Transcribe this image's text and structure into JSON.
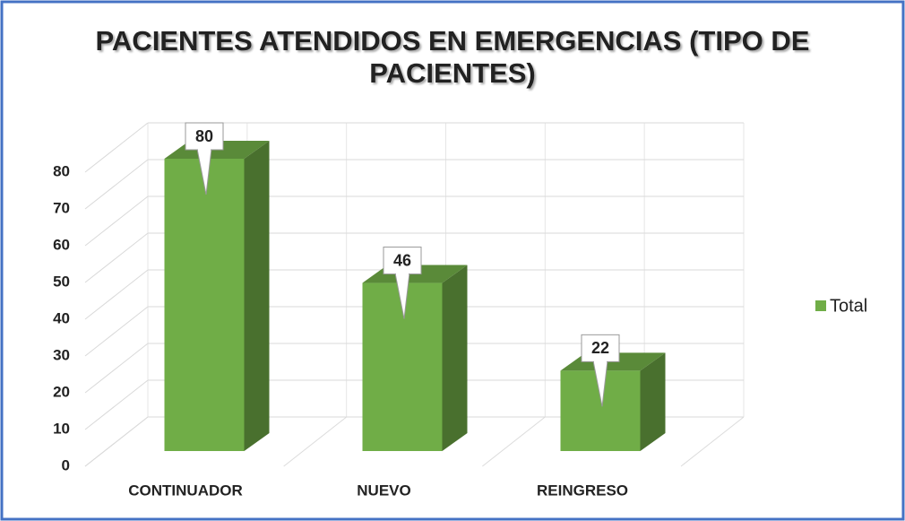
{
  "chart_data": {
    "type": "bar3d",
    "title": "PACIENTES ATENDIDOS EN EMERGENCIAS (TIPO DE PACIENTES)",
    "categories": [
      "CONTINUADOR",
      "NUEVO",
      "REINGRESO"
    ],
    "series": [
      {
        "name": "Total",
        "color": "#70ad47",
        "values": [
          80,
          46,
          22
        ]
      }
    ],
    "ylim": [
      0,
      80
    ],
    "yticks": [
      0,
      10,
      20,
      30,
      40,
      50,
      60,
      70,
      80
    ],
    "grid": true,
    "legend": "right"
  }
}
